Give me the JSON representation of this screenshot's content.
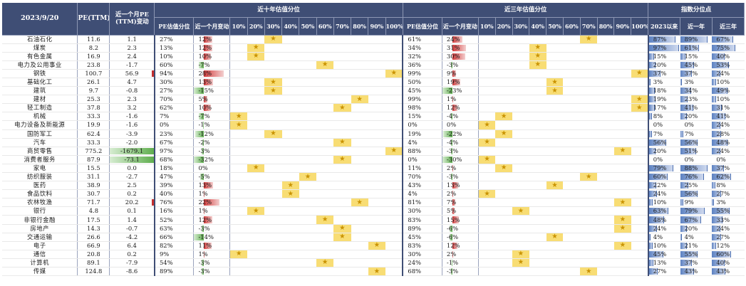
{
  "header": {
    "date": "2023/9/20",
    "pe": "PE(TTM)",
    "pe_change": "近一个月PE (TTM)变动",
    "ten_year_group": "近十年估值分位",
    "three_year_group": "近三年估值分位",
    "index_group": "指数分位点",
    "pe_pct": "PE估值分位",
    "month_change": "近一个月变动",
    "pct_ticks": [
      "10%",
      "20%",
      "30%",
      "40%",
      "50%",
      "60%",
      "70%",
      "80%",
      "90%",
      "100%"
    ],
    "index_cols": [
      "2023以来",
      "近一年",
      "近三年"
    ]
  },
  "star_glyph": "★",
  "colors": {
    "header_bg": "#3f4e75",
    "highlight": "#f8dd74",
    "star": "#c99200",
    "pos_bar": "#d23b3b",
    "neg_bar": "#5fae4e",
    "index_bar": "#5d82c2"
  },
  "rows": [
    {
      "name": "石油石化",
      "pe": "11.6",
      "pe_chg": "1.1",
      "pct10": "27%",
      "chg10": "12%",
      "v10": 12,
      "star10": 3,
      "pct3": "61%",
      "chg3": "24%",
      "v3": 24,
      "star3": 7,
      "y2023": "87%",
      "y1": "89%",
      "y3": "67%",
      "iy2023": 87,
      "iy1": 89,
      "iy3": 67
    },
    {
      "name": "煤炭",
      "pe": "8.2",
      "pe_chg": "2.3",
      "pct10": "13%",
      "chg10": "12%",
      "v10": 12,
      "star10": 2,
      "pct3": "34%",
      "chg3": "31%",
      "v3": 31,
      "star3": 4,
      "y2023": "97%",
      "y1": "61%",
      "y3": "75%",
      "iy2023": 97,
      "iy1": 61,
      "iy3": 75
    },
    {
      "name": "有色金属",
      "pe": "16.9",
      "pe_chg": "2.4",
      "pct10": "10%",
      "chg10": "10%",
      "v10": 10,
      "star10": 2,
      "pct3": "32%",
      "chg3": "30%",
      "v3": 30,
      "star3": 4,
      "y2023": "15%",
      "y1": "15%",
      "y3": "40%",
      "iy2023": 15,
      "iy1": 15,
      "iy3": 40
    },
    {
      "name": "电力及公用事业",
      "pe": "23.8",
      "pe_chg": "-1.7",
      "pct10": "60%",
      "chg10": "-7%",
      "v10": -7,
      "star10": 6,
      "pct3": "36%",
      "chg3": "-3%",
      "v3": -3,
      "star3": 4,
      "y2023": "20%",
      "y1": "45%",
      "y3": "53%",
      "iy2023": 20,
      "iy1": 45,
      "iy3": 53
    },
    {
      "name": "钢铁",
      "pe": "100.7",
      "pe_chg": "56.9",
      "pct10": "94%",
      "chg10": "28%",
      "v10": 28,
      "star10": 10,
      "pct3": "99%",
      "chg3": "9%",
      "v3": 9,
      "star3": 10,
      "y2023": "37%",
      "y1": "37%",
      "y3": "24%",
      "iy2023": 37,
      "iy1": 37,
      "iy3": 24
    },
    {
      "name": "基础化工",
      "pe": "26.1",
      "pe_chg": "4.7",
      "pct10": "30%",
      "chg10": "13%",
      "v10": 13,
      "star10": 3,
      "pct3": "50%",
      "chg3": "19%",
      "v3": 19,
      "star3": 5,
      "y2023": "3%",
      "y1": "3%",
      "y3": "10%",
      "iy2023": 3,
      "iy1": 3,
      "iy3": 10
    },
    {
      "name": "建筑",
      "pe": "9.7",
      "pe_chg": "-0.8",
      "pct10": "27%",
      "chg10": "-15%",
      "v10": -15,
      "star10": 3,
      "pct3": "45%",
      "chg3": "-23%",
      "v3": -23,
      "star3": 5,
      "y2023": "18%",
      "y1": "34%",
      "y3": "49%",
      "iy2023": 18,
      "iy1": 34,
      "iy3": 49
    },
    {
      "name": "建材",
      "pe": "25.3",
      "pe_chg": "2.3",
      "pct10": "70%",
      "chg10": "5%",
      "v10": 5,
      "star10": 8,
      "pct3": "99%",
      "chg3": "1%",
      "v3": 1,
      "star3": 10,
      "y2023": "19%",
      "y1": "23%",
      "y3": "10%",
      "iy2023": 19,
      "iy1": 23,
      "iy3": 10
    },
    {
      "name": "轻工制造",
      "pe": "37.8",
      "pe_chg": "3.2",
      "pct10": "62%",
      "chg10": "10%",
      "v10": 10,
      "star10": 7,
      "pct3": "98%",
      "chg3": "12%",
      "v3": 12,
      "star3": 10,
      "y2023": "17%",
      "y1": "41%",
      "y3": "31%",
      "iy2023": 17,
      "iy1": 41,
      "iy3": 31
    },
    {
      "name": "机械",
      "pe": "33.3",
      "pe_chg": "-1.6",
      "pct10": "7%",
      "chg10": "-7%",
      "v10": -7,
      "star10": 1,
      "pct3": "15%",
      "chg3": "-4%",
      "v3": -4,
      "star3": 2,
      "y2023": "8%",
      "y1": "20%",
      "y3": "41%",
      "iy2023": 8,
      "iy1": 20,
      "iy3": 41
    },
    {
      "name": "电力设备及新能源",
      "pe": "19.9",
      "pe_chg": "-1.6",
      "pct10": "0%",
      "chg10": "-1%",
      "v10": -1,
      "star10": 1,
      "pct3": "0%",
      "chg3": "0%",
      "v3": 0,
      "star3": 1,
      "y2023": "0%",
      "y1": "0%",
      "y3": "24%",
      "iy2023": 0,
      "iy1": 0,
      "iy3": 24
    },
    {
      "name": "国防军工",
      "pe": "62.4",
      "pe_chg": "-3.9",
      "pct10": "23%",
      "chg10": "-12%",
      "v10": -12,
      "star10": 3,
      "pct3": "19%",
      "chg3": "-22%",
      "v3": -22,
      "star3": 2,
      "y2023": "7%",
      "y1": "7%",
      "y3": "28%",
      "iy2023": 7,
      "iy1": 7,
      "iy3": 28
    },
    {
      "name": "汽车",
      "pe": "33.3",
      "pe_chg": "-2.0",
      "pct10": "67%",
      "chg10": "-2%",
      "v10": -2,
      "star10": 7,
      "pct3": "4%",
      "chg3": "-4%",
      "v3": -4,
      "star3": 1,
      "y2023": "56%",
      "y1": "56%",
      "y3": "48%",
      "iy2023": 56,
      "iy1": 56,
      "iy3": 48
    },
    {
      "name": "商贸零售",
      "pe": "775.2",
      "pe_chg": "-1679.1",
      "pct10": "97%",
      "chg10": "-3%",
      "v10": -3,
      "star10": 10,
      "pct3": "88%",
      "chg3": "-3%",
      "v3": -3,
      "star3": 9,
      "y2023": "20%",
      "y1": "51%",
      "y3": "24%",
      "iy2023": 20,
      "iy1": 51,
      "iy3": 24
    },
    {
      "name": "消费者服务",
      "pe": "87.9",
      "pe_chg": "-73.1",
      "pct10": "68%",
      "chg10": "-32%",
      "v10": -32,
      "star10": 7,
      "pct3": "0%",
      "chg3": "-30%",
      "v3": -30,
      "star3": 1,
      "y2023": "0%",
      "y1": "0%",
      "y3": "0%",
      "iy2023": 0,
      "iy1": 0,
      "iy3": 0
    },
    {
      "name": "家电",
      "pe": "15.5",
      "pe_chg": "0.0",
      "pct10": "18%",
      "chg10": "0%",
      "v10": 0,
      "star10": 2,
      "pct3": "11%",
      "chg3": "2%",
      "v3": 2,
      "star3": 2,
      "y2023": "79%",
      "y1": "88%",
      "y3": "37%",
      "iy2023": 79,
      "iy1": 88,
      "iy3": 37
    },
    {
      "name": "纺织服装",
      "pe": "31.1",
      "pe_chg": "-2.7",
      "pct10": "47%",
      "chg10": "-5%",
      "v10": -5,
      "star10": 5,
      "pct3": "70%",
      "chg3": "-3%",
      "v3": -3,
      "star3": 7,
      "y2023": "60%",
      "y1": "76%",
      "y3": "62%",
      "iy2023": 60,
      "iy1": 76,
      "iy3": 62
    },
    {
      "name": "医药",
      "pe": "38.9",
      "pe_chg": "2.5",
      "pct10": "39%",
      "chg10": "13%",
      "v10": 13,
      "star10": 4,
      "pct3": "43%",
      "chg3": "13%",
      "v3": 13,
      "star3": 5,
      "y2023": "22%",
      "y1": "25%",
      "y3": "8%",
      "iy2023": 22,
      "iy1": 25,
      "iy3": 8
    },
    {
      "name": "食品饮料",
      "pe": "30.7",
      "pe_chg": "0.2",
      "pct10": "40%",
      "chg10": "1%",
      "v10": 1,
      "star10": 4,
      "pct3": "4%",
      "chg3": "2%",
      "v3": 2,
      "star3": 1,
      "y2023": "24%",
      "y1": "56%",
      "y3": "27%",
      "iy2023": 24,
      "iy1": 56,
      "iy3": 27
    },
    {
      "name": "农林牧渔",
      "pe": "71.7",
      "pe_chg": "20.2",
      "pct10": "76%",
      "chg10": "22%",
      "v10": 22,
      "star10": 8,
      "pct3": "81%",
      "chg3": "7%",
      "v3": 7,
      "star3": 9,
      "y2023": "10%",
      "y1": "9%",
      "y3": "3%",
      "iy2023": 10,
      "iy1": 9,
      "iy3": 3
    },
    {
      "name": "银行",
      "pe": "4.8",
      "pe_chg": "0.1",
      "pct10": "16%",
      "chg10": "1%",
      "v10": 1,
      "star10": 2,
      "pct3": "30%",
      "chg3": "5%",
      "v3": 5,
      "star3": 3,
      "y2023": "63%",
      "y1": "79%",
      "y3": "55%",
      "iy2023": 63,
      "iy1": 79,
      "iy3": 55
    },
    {
      "name": "非银行金融",
      "pe": "17.5",
      "pe_chg": "1.4",
      "pct10": "52%",
      "chg10": "12%",
      "v10": 12,
      "star10": 6,
      "pct3": "83%",
      "chg3": "15%",
      "v3": 15,
      "star3": 9,
      "y2023": "48%",
      "y1": "67%",
      "y3": "33%",
      "iy2023": 48,
      "iy1": 67,
      "iy3": 33
    },
    {
      "name": "房地产",
      "pe": "14.3",
      "pe_chg": "-0.7",
      "pct10": "63%",
      "chg10": "-3%",
      "v10": -3,
      "star10": 7,
      "pct3": "89%",
      "chg3": "-6%",
      "v3": -6,
      "star3": 9,
      "y2023": "24%",
      "y1": "20%",
      "y3": "24%",
      "iy2023": 24,
      "iy1": 20,
      "iy3": 24
    },
    {
      "name": "交通运输",
      "pe": "26.6",
      "pe_chg": "-4.2",
      "pct10": "66%",
      "chg10": "-14%",
      "v10": -14,
      "star10": 7,
      "pct3": "45%",
      "chg3": "-6%",
      "v3": -6,
      "star3": 5,
      "y2023": "4%",
      "y1": "4%",
      "y3": "27%",
      "iy2023": 4,
      "iy1": 4,
      "iy3": 27
    },
    {
      "name": "电子",
      "pe": "66.9",
      "pe_chg": "6.4",
      "pct10": "82%",
      "chg10": "11%",
      "v10": 11,
      "star10": 9,
      "pct3": "83%",
      "chg3": "12%",
      "v3": 12,
      "star3": 9,
      "y2023": "10%",
      "y1": "21%",
      "y3": "12%",
      "iy2023": 10,
      "iy1": 21,
      "iy3": 12
    },
    {
      "name": "通信",
      "pe": "20.8",
      "pe_chg": "0.2",
      "pct10": "9%",
      "chg10": "1%",
      "v10": 1,
      "star10": 1,
      "pct3": "30%",
      "chg3": "2%",
      "v3": 2,
      "star3": 3,
      "y2023": "45%",
      "y1": "55%",
      "y3": "60%",
      "iy2023": 45,
      "iy1": 55,
      "iy3": 60
    },
    {
      "name": "计算机",
      "pe": "89.1",
      "pe_chg": "-7.9",
      "pct10": "54%",
      "chg10": "-3%",
      "v10": -3,
      "star10": 6,
      "pct3": "24%",
      "chg3": "-1%",
      "v3": -1,
      "star3": 3,
      "y2023": "13%",
      "y1": "37%",
      "y3": "40%",
      "iy2023": 13,
      "iy1": 37,
      "iy3": 40
    },
    {
      "name": "传媒",
      "pe": "124.8",
      "pe_chg": "-8.6",
      "pct10": "89%",
      "chg10": "-3%",
      "v10": -3,
      "star10": 9,
      "pct3": "68%",
      "chg3": "-3%",
      "v3": -3,
      "star3": 7,
      "y2023": "27%",
      "y1": "43%",
      "y3": "43%",
      "iy2023": 27,
      "iy1": 43,
      "iy3": 43
    }
  ]
}
